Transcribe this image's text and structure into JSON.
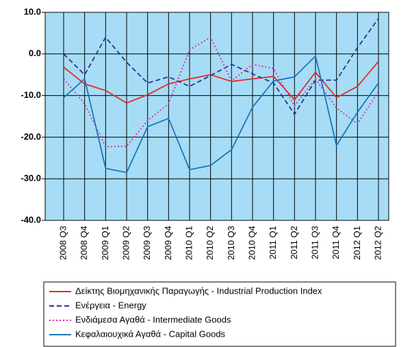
{
  "chart_data": {
    "type": "line",
    "categories": [
      "2008 Q3",
      "2008 Q4",
      "2009 Q1",
      "2009 Q2",
      "2009 Q3",
      "2009 Q4",
      "2010 Q1",
      "2010 Q2",
      "2010 Q3",
      "2010 Q4",
      "2011 Q1",
      "2011 Q2",
      "2011 Q3",
      "2011 Q4",
      "2012 Q1",
      "2012 Q2"
    ],
    "series": [
      {
        "name": "Δείκτης Βιομηχανικής Παραγωγής - Industrial Production Index",
        "color": "#e32b26",
        "dash": "solid",
        "values": [
          -3.2,
          -7.2,
          -8.8,
          -11.8,
          -9.8,
          -7.2,
          -6.0,
          -5.0,
          -6.6,
          -6.0,
          -5.4,
          -11.0,
          -4.4,
          -10.5,
          -7.8,
          -1.8
        ]
      },
      {
        "name": "Ενέργεια - Energy",
        "color": "#2e3192",
        "dash": "dashed",
        "values": [
          0.0,
          -5.0,
          4.0,
          -2.0,
          -7.0,
          -5.5,
          -7.8,
          -5.2,
          -2.5,
          -4.8,
          -7.0,
          -14.5,
          -6.3,
          -6.3,
          1.5,
          8.5
        ]
      },
      {
        "name": "Ενδιάμεσα Αγαθά - Intermediate Goods",
        "color": "#d9299b",
        "dash": "dotted",
        "values": [
          -6.0,
          -12.0,
          -22.3,
          -22.2,
          -16.0,
          -12.0,
          1.0,
          4.0,
          -6.5,
          -2.5,
          -3.5,
          -12.5,
          -6.0,
          -13.0,
          -16.8,
          -9.0
        ]
      },
      {
        "name": "Κεφαλαιουχικά Αγαθά - Capital Goods",
        "color": "#1b75bb",
        "dash": "solid",
        "values": [
          -10.5,
          -6.0,
          -27.5,
          -28.5,
          -17.5,
          -15.5,
          -27.8,
          -26.8,
          -23.0,
          -12.8,
          -6.5,
          -5.5,
          -0.5,
          -22.0,
          -14.0,
          -7.0
        ]
      }
    ],
    "ylim": [
      -40,
      10
    ],
    "yticks": [
      {
        "value": -40,
        "label": "-40.0"
      },
      {
        "value": -30,
        "label": "-30.0"
      },
      {
        "value": -20,
        "label": "-20.0"
      },
      {
        "value": -10,
        "label": "-10.0"
      },
      {
        "value": 0,
        "label": "0.0"
      },
      {
        "value": 10,
        "label": "10.0"
      }
    ],
    "grid": true,
    "background": "#a6dcf5"
  }
}
